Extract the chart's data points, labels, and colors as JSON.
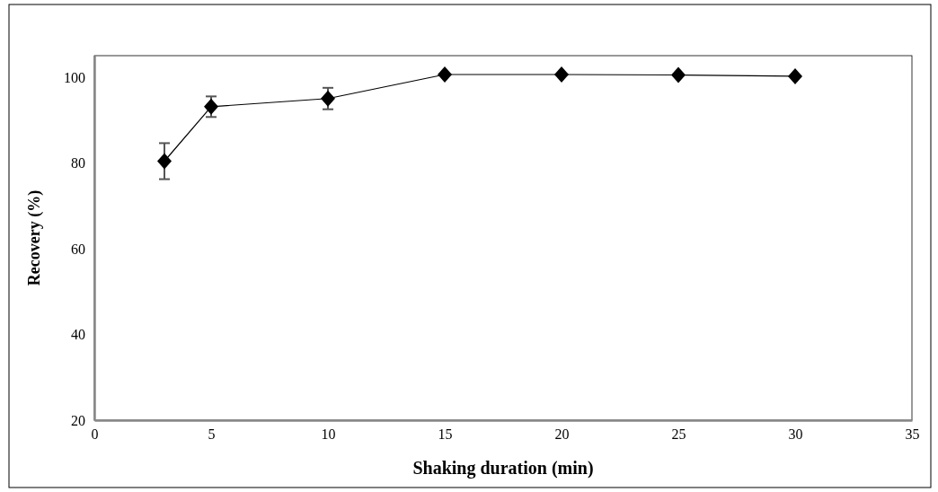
{
  "chart_data": {
    "type": "line",
    "xlabel": "Shaking duration (min)",
    "ylabel": "Recovery (%)",
    "x": [
      3,
      5,
      10,
      15,
      20,
      25,
      30
    ],
    "series": [
      {
        "color": "#000000",
        "values": [
          80.4,
          93.1,
          95,
          100.6,
          100.6,
          100.5,
          100.2
        ],
        "errors": [
          4.2,
          2.4,
          2.5,
          null,
          null,
          null,
          null
        ]
      }
    ],
    "xlim": [
      0,
      35
    ],
    "xticks": [
      0,
      5,
      10,
      15,
      20,
      25,
      30,
      35
    ],
    "ylim": [
      20,
      105
    ],
    "yticks": [
      20,
      40,
      60,
      80,
      100
    ],
    "marker": "diamond",
    "line_style": "solid",
    "grid": false,
    "legend": false
  }
}
